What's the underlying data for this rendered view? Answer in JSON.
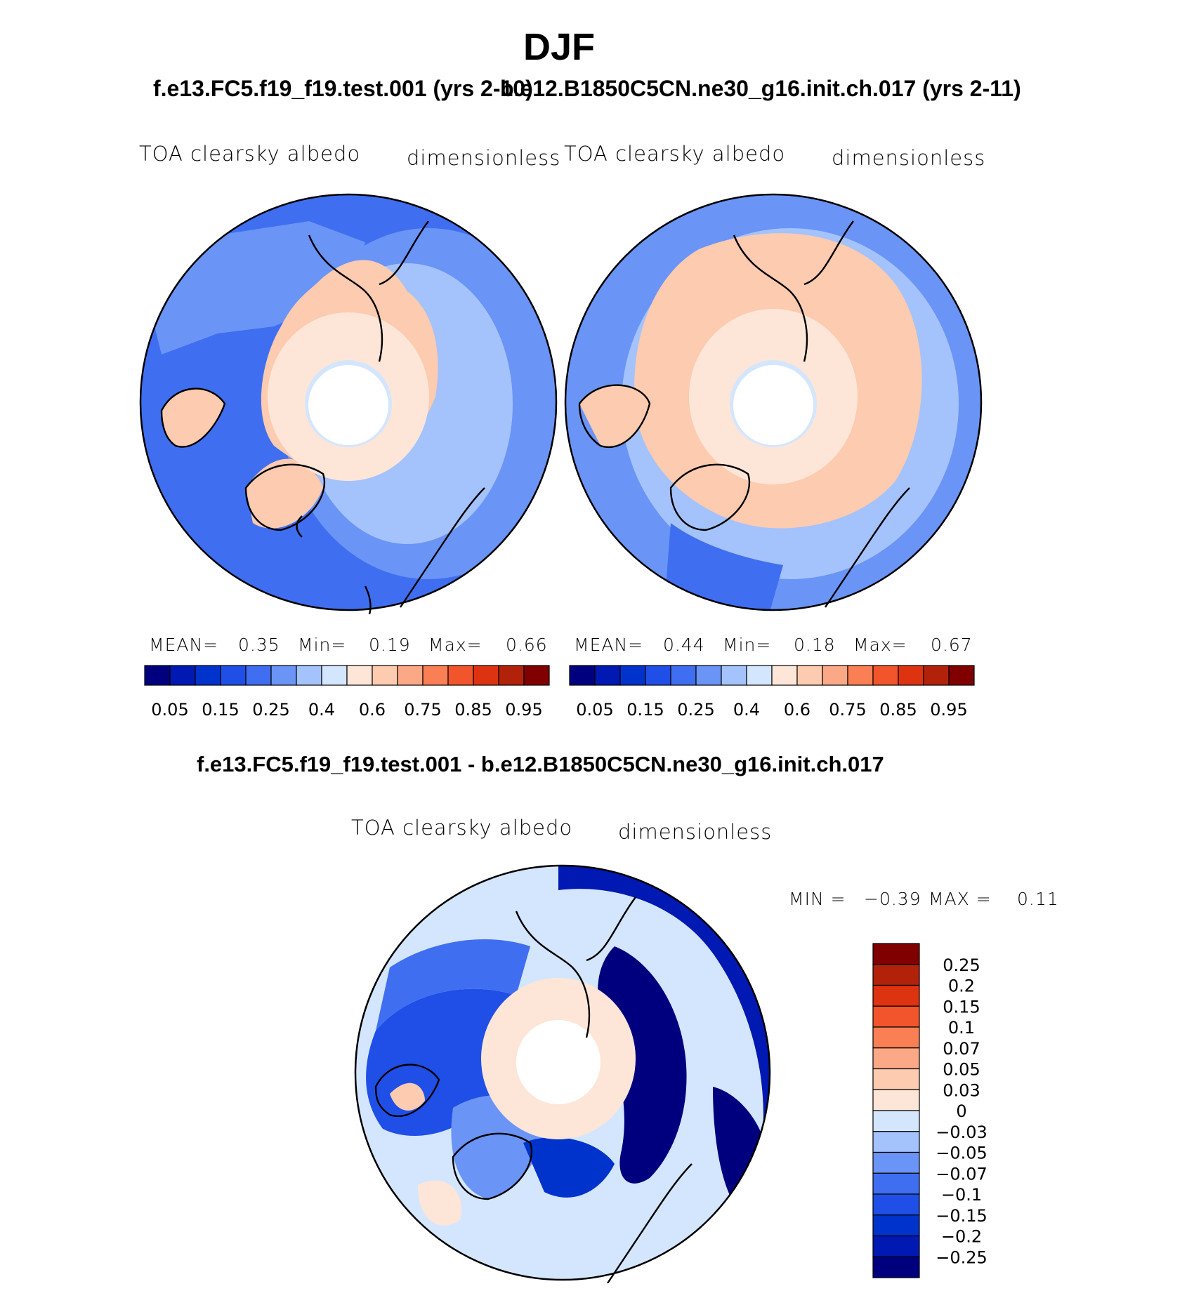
{
  "title": "DJF",
  "panels": [
    {
      "case": "f.e13.FC5.f19_f19.test.001 (yrs 2-10)",
      "variable": "TOA clearsky albedo",
      "units": "dimensionless",
      "stats": {
        "mean_label": "MEAN=",
        "mean": "0.35",
        "min_label": "Min=",
        "min": "0.19",
        "max_label": "Max=",
        "max": "0.66"
      }
    },
    {
      "case": "b.e12.B1850C5CN.ne30_g16.init.ch.017 (yrs 2-11)",
      "variable": "TOA clearsky albedo",
      "units": "dimensionless",
      "stats": {
        "mean_label": "MEAN=",
        "mean": "0.44",
        "min_label": "Min=",
        "min": "0.18",
        "max_label": "Max=",
        "max": "0.67"
      }
    }
  ],
  "colorbar": {
    "colors": [
      "#00007f",
      "#0019b2",
      "#0033cc",
      "#1f4fe6",
      "#3f6ff0",
      "#6a94f5",
      "#a4c2fb",
      "#d4e6fe",
      "#fde6d8",
      "#fccbb0",
      "#fba886",
      "#fa7f55",
      "#f2552b",
      "#dd3311",
      "#b2220a",
      "#800000"
    ],
    "labels": [
      "0.05",
      "0.15",
      "0.25",
      "0.4",
      "0.6",
      "0.75",
      "0.85",
      "0.95"
    ]
  },
  "diff": {
    "title": "f.e13.FC5.f19_f19.test.001 - b.e12.B1850C5CN.ne30_g16.init.ch.017",
    "variable": "TOA clearsky albedo",
    "units": "dimensionless",
    "min_label": "MIN =",
    "min": "−0.39",
    "max_label": "MAX =",
    "max": "0.11",
    "colorbar": {
      "colors": [
        "#800000",
        "#b2220a",
        "#dd3311",
        "#f2552b",
        "#fa7f55",
        "#fba886",
        "#fccbb0",
        "#fde6d8",
        "#d4e6fe",
        "#a4c2fb",
        "#6a94f5",
        "#3f6ff0",
        "#1f4fe6",
        "#0033cc",
        "#0019b2",
        "#00007f"
      ],
      "labels": [
        "0.25",
        "0.2",
        "0.15",
        "0.1",
        "0.07",
        "0.05",
        "0.03",
        "0",
        "−0.03",
        "−0.05",
        "−0.07",
        "−0.1",
        "−0.15",
        "−0.2",
        "−0.25"
      ]
    }
  }
}
